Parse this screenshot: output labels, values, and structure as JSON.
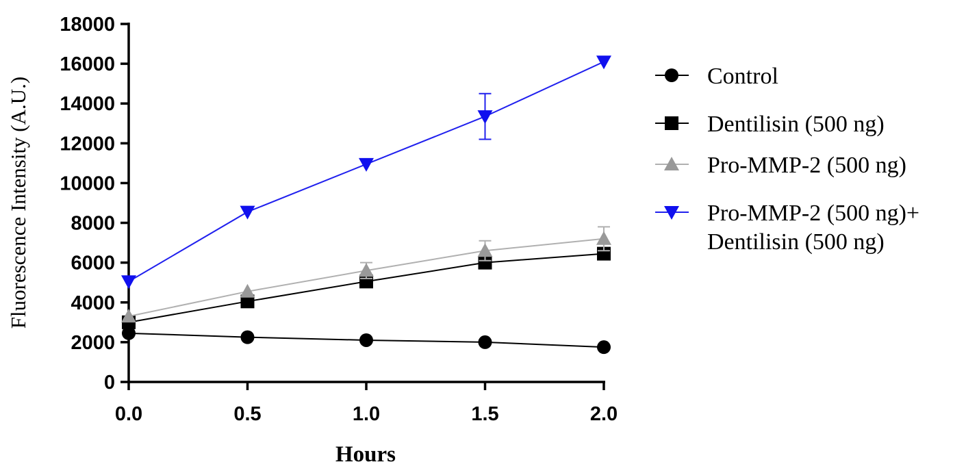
{
  "chart_data": {
    "type": "line",
    "xlabel": "Hours",
    "ylabel": "Fluorescence Intensity (A.U.)",
    "xlim": [
      0,
      2
    ],
    "ylim": [
      0,
      18000
    ],
    "x_ticks": [
      "0.0",
      "0.5",
      "1.0",
      "1.5",
      "2.0"
    ],
    "y_ticks": [
      "0",
      "2000",
      "4000",
      "6000",
      "8000",
      "10000",
      "12000",
      "14000",
      "16000",
      "18000"
    ],
    "x": [
      0,
      0.5,
      1.0,
      1.5,
      2.0
    ],
    "grid": false,
    "legend_position": "right",
    "series": [
      {
        "name": "Control",
        "legend_lines": [
          "Control"
        ],
        "marker": "circle",
        "color": "#000000",
        "line_color": "#000000",
        "values": [
          2450,
          2250,
          2100,
          2000,
          1750
        ],
        "errors": [
          0,
          0,
          0,
          0,
          0
        ]
      },
      {
        "name": "Dentilisin (500 ng)",
        "legend_lines": [
          "Dentilisin (500 ng)"
        ],
        "marker": "square",
        "color": "#000000",
        "line_color": "#000000",
        "values": [
          3000,
          4050,
          5050,
          6000,
          6450
        ],
        "errors": [
          0,
          0,
          0,
          0,
          0
        ]
      },
      {
        "name": "Pro-MMP-2 (500 ng)",
        "legend_lines": [
          "Pro-MMP-2 (500 ng)"
        ],
        "marker": "triangle-up",
        "color": "#999999",
        "line_color": "#b0b0b0",
        "values": [
          3300,
          4550,
          5600,
          6600,
          7200
        ],
        "errors": [
          0,
          0,
          400,
          500,
          600
        ]
      },
      {
        "name": "Pro-MMP-2  (500 ng)+ Dentilisin (500 ng)",
        "legend_lines": [
          "Pro-MMP-2  (500 ng)+",
          " Dentilisin (500 ng)"
        ],
        "marker": "triangle-down",
        "color": "#1010ee",
        "line_color": "#2020ee",
        "values": [
          5050,
          8550,
          10950,
          13350,
          16100
        ],
        "errors": [
          0,
          0,
          0,
          1150,
          0
        ]
      }
    ]
  }
}
